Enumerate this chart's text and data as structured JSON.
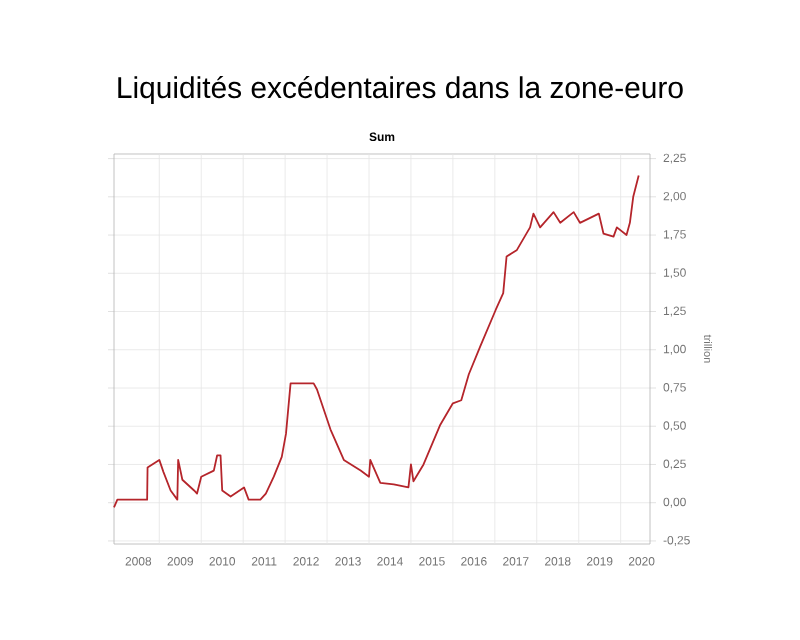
{
  "chart_data": {
    "type": "line",
    "title": "Liquidités excédentaires dans la zone-euro",
    "subtitle": "Sum",
    "ylabel": "trillion",
    "x": [
      2007.92,
      2008.0,
      2008.71,
      2008.72,
      2009.0,
      2009.1,
      2009.27,
      2009.43,
      2009.45,
      2009.55,
      2009.83,
      2009.9,
      2010.0,
      2010.3,
      2010.38,
      2010.46,
      2010.5,
      2010.7,
      2011.02,
      2011.13,
      2011.41,
      2011.54,
      2011.73,
      2011.92,
      2012.02,
      2012.13,
      2012.68,
      2012.76,
      2013.08,
      2013.4,
      2013.8,
      2014.0,
      2014.03,
      2014.27,
      2014.59,
      2014.94,
      2015.0,
      2015.06,
      2015.3,
      2015.7,
      2016.0,
      2016.2,
      2016.38,
      2016.65,
      2017.02,
      2017.2,
      2017.28,
      2017.52,
      2017.84,
      2017.92,
      2018.08,
      2018.4,
      2018.56,
      2018.88,
      2019.03,
      2019.48,
      2019.59,
      2019.83,
      2019.91,
      2020.14,
      2020.22,
      2020.3,
      2020.43
    ],
    "series": [
      {
        "color": "#b5252b",
        "values": [
          -0.03,
          0.02,
          0.02,
          0.23,
          0.28,
          0.2,
          0.08,
          0.02,
          0.28,
          0.15,
          0.08,
          0.06,
          0.17,
          0.21,
          0.31,
          0.31,
          0.08,
          0.04,
          0.1,
          0.02,
          0.02,
          0.06,
          0.17,
          0.3,
          0.45,
          0.78,
          0.78,
          0.74,
          0.48,
          0.28,
          0.21,
          0.17,
          0.28,
          0.13,
          0.12,
          0.1,
          0.25,
          0.14,
          0.25,
          0.51,
          0.65,
          0.67,
          0.84,
          1.02,
          1.26,
          1.37,
          1.61,
          1.65,
          1.8,
          1.89,
          1.8,
          1.9,
          1.83,
          1.9,
          1.83,
          1.89,
          1.76,
          1.74,
          1.8,
          1.75,
          1.83,
          2.0,
          2.14
        ]
      }
    ],
    "xlim": [
      2007.92,
      2020.7
    ],
    "xticks": [
      {
        "value": 2008.5,
        "label": "2008"
      },
      {
        "value": 2009,
        "label": null
      },
      {
        "value": 2009.5,
        "label": "2009"
      },
      {
        "value": 2010,
        "label": null
      },
      {
        "value": 2010.5,
        "label": "2010"
      },
      {
        "value": 2011,
        "label": null
      },
      {
        "value": 2011.5,
        "label": "2011"
      },
      {
        "value": 2012,
        "label": null
      },
      {
        "value": 2012.5,
        "label": "2012"
      },
      {
        "value": 2013,
        "label": null
      },
      {
        "value": 2013.5,
        "label": "2013"
      },
      {
        "value": 2014,
        "label": null
      },
      {
        "value": 2014.5,
        "label": "2014"
      },
      {
        "value": 2015,
        "label": null
      },
      {
        "value": 2015.5,
        "label": "2015"
      },
      {
        "value": 2016,
        "label": null
      },
      {
        "value": 2016.5,
        "label": "2016"
      },
      {
        "value": 2017,
        "label": null
      },
      {
        "value": 2017.5,
        "label": "2017"
      },
      {
        "value": 2018,
        "label": null
      },
      {
        "value": 2018.5,
        "label": "2018"
      },
      {
        "value": 2019,
        "label": null
      },
      {
        "value": 2019.5,
        "label": "2019"
      },
      {
        "value": 2020,
        "label": null
      },
      {
        "value": 2020.5,
        "label": "2020"
      }
    ],
    "ylim": [
      -0.27,
      2.28
    ],
    "yticks": [
      {
        "value": -0.25,
        "label": "-0,25"
      },
      {
        "value": 0,
        "label": "0,00"
      },
      {
        "value": 0.25,
        "label": "0,25"
      },
      {
        "value": 0.5,
        "label": "0,50"
      },
      {
        "value": 0.75,
        "label": "0,75"
      },
      {
        "value": 1,
        "label": "1,00"
      },
      {
        "value": 1.25,
        "label": "1,25"
      },
      {
        "value": 1.5,
        "label": "1,50"
      },
      {
        "value": 1.75,
        "label": "1,75"
      },
      {
        "value": 2,
        "label": "2,00"
      },
      {
        "value": 2.25,
        "label": "2,25"
      }
    ],
    "grid": true,
    "marker": "none",
    "line_style": "solid"
  }
}
